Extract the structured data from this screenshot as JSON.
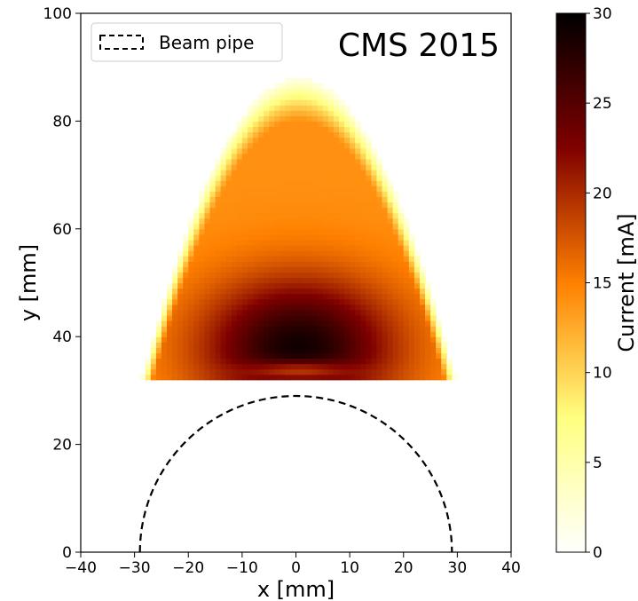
{
  "chart_data": {
    "type": "heatmap",
    "annotation": "CMS 2015",
    "xlabel": "x [mm]",
    "ylabel": "y [mm]",
    "xlim": [
      -40,
      40
    ],
    "ylim": [
      0,
      100
    ],
    "xticks": [
      "−40",
      "−30",
      "−20",
      "−10",
      "0",
      "10",
      "20",
      "30",
      "40"
    ],
    "yticks": [
      "0",
      "20",
      "40",
      "60",
      "80",
      "100"
    ],
    "legend": {
      "position": "upper-left",
      "entries": [
        "Beam pipe"
      ]
    },
    "beam_pipe": {
      "shape": "semicircle",
      "center_x": 0,
      "center_y": 0,
      "radius": 29,
      "style": "dashed",
      "color": "#000000"
    },
    "heatmap_region": {
      "x_min": -28.5,
      "x_max": 29.5,
      "y_bottom": 32.5,
      "y_top": 88,
      "center_x": 0.5,
      "peak_y": 38,
      "values_mA": {
        "peak": 29,
        "just_above_bottom_edge_center": 23,
        "upper_interior": 15,
        "lower_sides": 18,
        "outer_rim": 2
      }
    },
    "colorbar": {
      "label": "Current [mA]",
      "colormap": "afmhot_r",
      "range": [
        0,
        30
      ],
      "ticks": [
        "0",
        "5",
        "10",
        "15",
        "20",
        "25",
        "30"
      ]
    }
  }
}
